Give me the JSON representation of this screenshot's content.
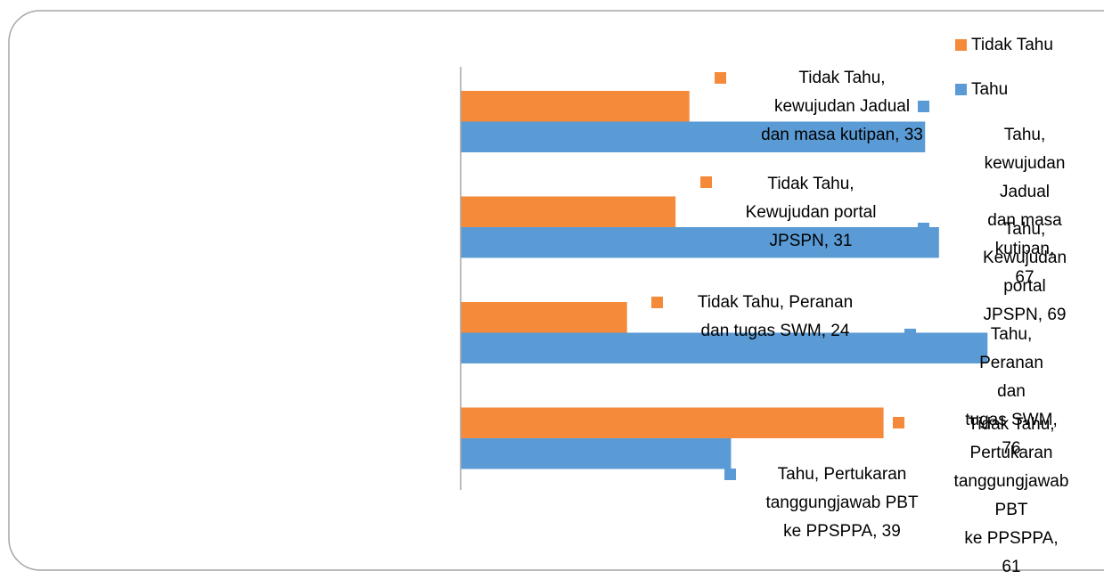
{
  "chart_data": {
    "type": "bar",
    "orientation": "horizontal",
    "series": [
      {
        "name": "Tidak Tahu",
        "color": "#f58a3a",
        "values": [
          33,
          31,
          24,
          61
        ],
        "value_labels": [
          "Tidak Tahu,\nkewujudan Jadual\ndan masa kutipan, 33",
          "Tidak Tahu,\nKewujudan portal\nJPSPN, 31",
          "Tidak Tahu, Peranan\ndan tugas SWM, 24",
          "Tidak Tahu,\nPertukaran\ntanggungjawab PBT\nke PPSPPA, 61"
        ]
      },
      {
        "name": "Tahu",
        "color": "#5b9bd5",
        "values": [
          67,
          69,
          76,
          39
        ],
        "value_labels": [
          "Tahu, kewujudan\nJadual dan masa\nkutipan, 67",
          "Tahu, Kewujudan\nportal JPSPN, 69",
          "Tahu, Peranan dan\ntugas SWM, 76",
          "Tahu, Pertukaran\ntanggungjawab PBT\nke PPSPPA, 39"
        ]
      }
    ],
    "legend": "top-right"
  }
}
